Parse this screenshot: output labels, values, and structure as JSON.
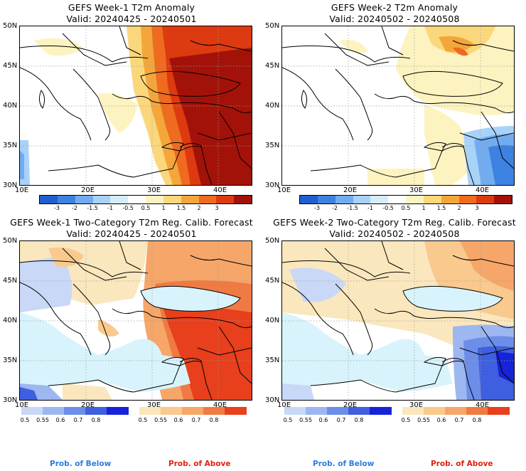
{
  "panels": [
    {
      "title_line1": "GEFS Week-1 T2m Anomaly",
      "title_line2": "Valid: 20240425 - 20240501"
    },
    {
      "title_line1": "GEFS Week-2 T2m Anomaly",
      "title_line2": "Valid: 20240502 - 20240508"
    },
    {
      "title_line1": "GEFS Week-1 Two-Category T2m Reg. Calib. Forecast",
      "title_line2": "Valid: 20240425 - 20240501"
    },
    {
      "title_line1": "GEFS Week-2 Two-Category T2m Reg. Calib. Forecast",
      "title_line2": "Valid: 20240502 - 20240508"
    }
  ],
  "lat_labels": [
    "50N",
    "45N",
    "40N",
    "35N",
    "30N"
  ],
  "lon_labels": [
    "10E",
    "20E",
    "30E",
    "40E"
  ],
  "anomaly_colorbar": {
    "labels": [
      "-3",
      "-2",
      "-1.5",
      "-1",
      "-0.5",
      "0.5",
      "1",
      "1.5",
      "2",
      "3"
    ],
    "colors": [
      "#1f5fd1",
      "#3d82e0",
      "#72acf0",
      "#a9d2f8",
      "#d5ecfd",
      "#ffffff",
      "#fdf3c0",
      "#fbd77c",
      "#f5a63b",
      "#ee6b1f",
      "#dd3a11",
      "#a31209"
    ]
  },
  "prob_below": {
    "labels": [
      "0.5",
      "0.55",
      "0.6",
      "0.7",
      "0.8"
    ],
    "colors": [
      "#c9d8f7",
      "#9db7f0",
      "#6d8ee8",
      "#3e5fe0",
      "#1623d8"
    ],
    "caption": "Prob. of Below"
  },
  "prob_above": {
    "labels": [
      "0.5",
      "0.55",
      "0.6",
      "0.7",
      "0.8"
    ],
    "colors": [
      "#fbe7bd",
      "#f9c98e",
      "#f6a669",
      "#f07a43",
      "#e83f1c"
    ],
    "caption": "Prob. of Above"
  },
  "colors": {
    "sea_light_blue": "#d8f3fb",
    "caption_blue": "#2b7ce0",
    "caption_red": "#e02010"
  }
}
